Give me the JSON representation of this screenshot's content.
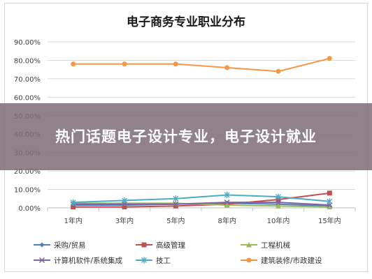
{
  "chart_data": {
    "type": "line",
    "title": "电子商务专业职业分布",
    "categories": [
      "1年内",
      "3年内",
      "5年内",
      "8年内",
      "10年内",
      "15年内"
    ],
    "ylim": [
      0,
      90
    ],
    "yticks": [
      "0.00%",
      "10.00%",
      "20.00%",
      "30.00%",
      "40.00%",
      "50.00%",
      "60.00%",
      "70.00%",
      "80.00%",
      "90.00%"
    ],
    "grid": true,
    "legend_position": "bottom",
    "series": [
      {
        "name": "采购/贸易",
        "color": "#4F81BD",
        "marker": "diamond",
        "values": [
          1.5,
          1.5,
          2.0,
          2.5,
          2.0,
          1.0
        ]
      },
      {
        "name": "高级管理",
        "color": "#C0504D",
        "marker": "square",
        "values": [
          0.5,
          0.5,
          1.0,
          2.0,
          4.5,
          8.0
        ]
      },
      {
        "name": "工程机械",
        "color": "#9BBB59",
        "marker": "triangle",
        "values": [
          2.5,
          2.5,
          2.5,
          1.5,
          1.0,
          0.5
        ]
      },
      {
        "name": "计算机软件/系统集成",
        "color": "#8064A2",
        "marker": "x",
        "values": [
          2.0,
          2.0,
          2.0,
          3.0,
          3.0,
          1.5
        ]
      },
      {
        "name": "技工",
        "color": "#4BACC6",
        "marker": "star",
        "values": [
          3.0,
          4.0,
          5.0,
          7.0,
          6.0,
          3.5
        ]
      },
      {
        "name": "建筑装修/市政建设",
        "color": "#F79646",
        "marker": "circle",
        "values": [
          78.0,
          78.0,
          78.0,
          76.0,
          74.0,
          81.0
        ]
      }
    ]
  },
  "overlay": {
    "headline": "热门话题电子设计专业，电子设计就业"
  }
}
